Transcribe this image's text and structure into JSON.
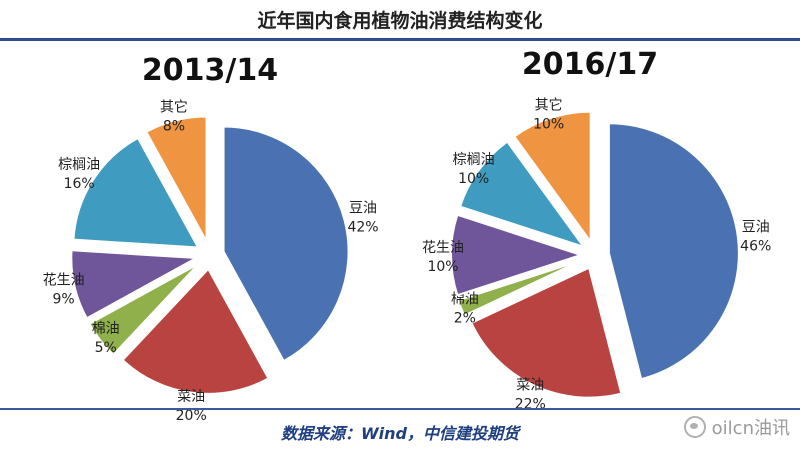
{
  "title": "近年国内食用植物油消费结构变化",
  "source": "数据来源：Wind，中信建投期货",
  "watermark": "oilcn油讯",
  "chart_data": [
    {
      "type": "pie",
      "title": "2013/14",
      "categories": [
        "豆油",
        "菜油",
        "棉油",
        "花生油",
        "棕榈油",
        "其它"
      ],
      "values": [
        42,
        20,
        5,
        9,
        16,
        8
      ],
      "colors": [
        "#4a72b2",
        "#b94340",
        "#8fb04a",
        "#6f559a",
        "#3f9cc0",
        "#ef9440"
      ],
      "value_labels": [
        "42%",
        "20%",
        "5%",
        "9%",
        "16%",
        "8%"
      ]
    },
    {
      "type": "pie",
      "title": "2016/17",
      "categories": [
        "豆油",
        "菜油",
        "棉油",
        "花生油",
        "棕榈油",
        "其它"
      ],
      "values": [
        46,
        22,
        2,
        10,
        10,
        10
      ],
      "colors": [
        "#4a72b2",
        "#b94340",
        "#8fb04a",
        "#6f559a",
        "#3f9cc0",
        "#ef9440"
      ],
      "value_labels": [
        "46%",
        "22%",
        "2%",
        "10%",
        "10%",
        "10%"
      ]
    }
  ]
}
